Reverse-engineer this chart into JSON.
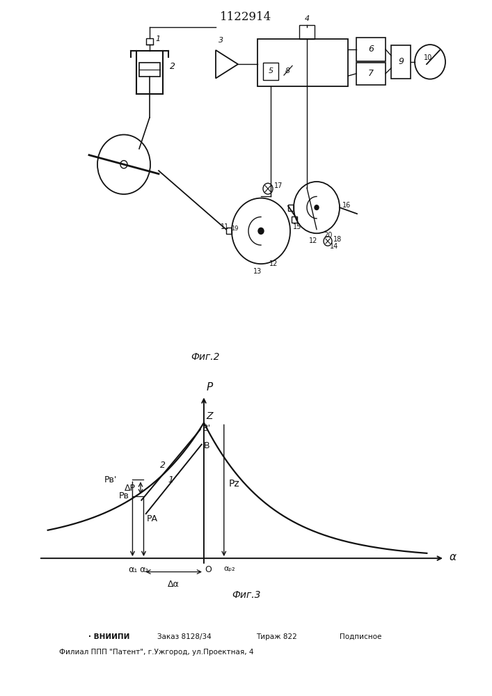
{
  "title": "1122914",
  "fig2_caption": "Фиг.2",
  "fig3_caption": "Фиг.3",
  "bottom_line1": "· ВНИИПИ    Заказ 8128/34    Тираж 822    Подписное",
  "bottom_line2": "Филиал ППП \"Патент\", г.Ужгород, ул.Проектная, 4",
  "bg": "#ffffff",
  "lc": "#111111"
}
